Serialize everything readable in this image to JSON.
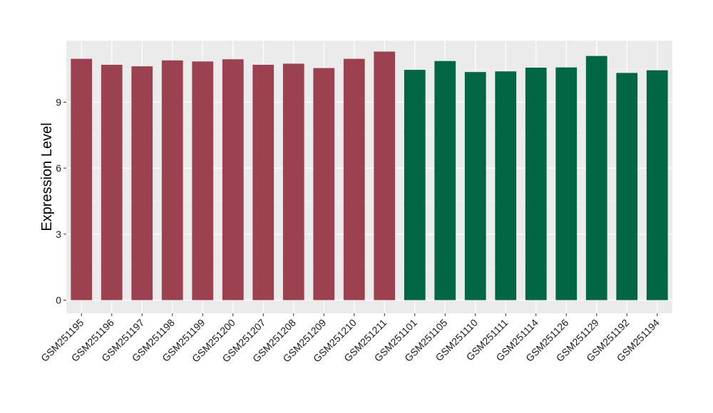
{
  "chart_data": {
    "type": "bar",
    "ylabel": "Expression Level",
    "xlabel": "",
    "ylim": [
      -0.6,
      11.8
    ],
    "yticks": [
      0,
      3,
      6,
      9
    ],
    "grid": true,
    "categories": [
      "GSM251195",
      "GSM251196",
      "GSM251197",
      "GSM251198",
      "GSM251199",
      "GSM251200",
      "GSM251207",
      "GSM251208",
      "GSM251209",
      "GSM251210",
      "GSM251211",
      "GSM251101",
      "GSM251105",
      "GSM251110",
      "GSM251111",
      "GSM251114",
      "GSM251126",
      "GSM251129",
      "GSM251192",
      "GSM251194"
    ],
    "values": [
      10.97,
      10.7,
      10.63,
      10.9,
      10.85,
      10.95,
      10.7,
      10.75,
      10.55,
      10.97,
      11.3,
      10.47,
      10.87,
      10.37,
      10.4,
      10.57,
      10.58,
      11.1,
      10.33,
      10.45
    ],
    "groups": [
      "a",
      "a",
      "a",
      "a",
      "a",
      "a",
      "a",
      "a",
      "a",
      "a",
      "a",
      "b",
      "b",
      "b",
      "b",
      "b",
      "b",
      "b",
      "b",
      "b"
    ],
    "colors": {
      "a": "#9b4150",
      "b": "#006644",
      "panel": "#ebebeb",
      "grid_major": "#ffffff",
      "grid_minor": "#f5f5f5"
    }
  }
}
